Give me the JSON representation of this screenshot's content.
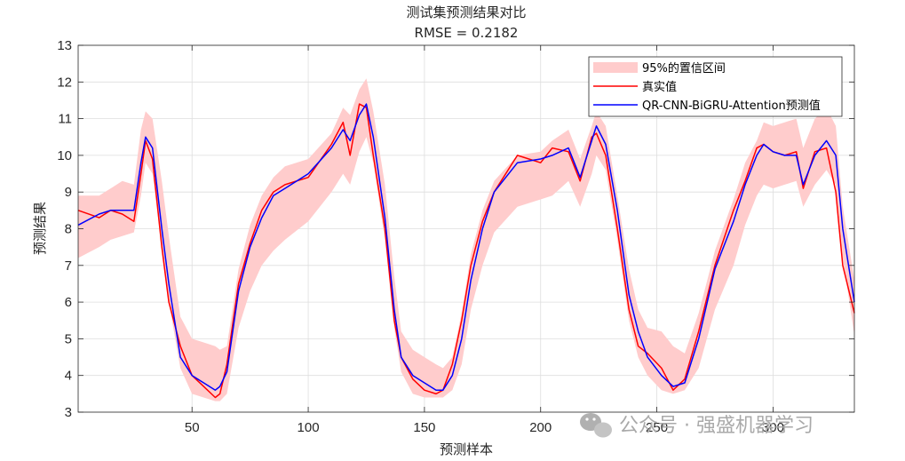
{
  "chart_data": {
    "type": "line",
    "title": "测试集预测结果对比",
    "subtitle": "RMSE = 0.2182",
    "xlabel": "预测样本",
    "ylabel": "预测结果",
    "xlim": [
      1,
      335
    ],
    "ylim": [
      3,
      13
    ],
    "xticks": [
      50,
      100,
      150,
      200,
      250,
      300
    ],
    "yticks": [
      3,
      4,
      5,
      6,
      7,
      8,
      9,
      10,
      11,
      12,
      13
    ],
    "grid": true,
    "legend_position": "top-right",
    "legend": [
      "95%的置信区间",
      "真实值",
      "QR-CNN-BiGRU-Attention预测值"
    ],
    "colors": {
      "band": "#ffcccc",
      "actual": "#ff0000",
      "predicted": "#0000ff"
    },
    "x": [
      1,
      10,
      15,
      20,
      25,
      28,
      30,
      33,
      37,
      40,
      45,
      50,
      55,
      60,
      62,
      65,
      70,
      75,
      80,
      85,
      90,
      100,
      110,
      115,
      118,
      122,
      125,
      128,
      133,
      137,
      140,
      145,
      150,
      155,
      158,
      162,
      166,
      170,
      175,
      180,
      190,
      200,
      205,
      212,
      217,
      222,
      224,
      228,
      233,
      238,
      242,
      246,
      252,
      257,
      262,
      268,
      275,
      283,
      288,
      293,
      296,
      300,
      305,
      310,
      313,
      318,
      323,
      327,
      330,
      335
    ],
    "series": [
      {
        "name": "真实值",
        "values": [
          8.5,
          8.3,
          8.5,
          8.4,
          8.2,
          9.5,
          10.4,
          9.9,
          7.5,
          6.0,
          4.8,
          4.0,
          3.7,
          3.4,
          3.5,
          4.3,
          6.5,
          7.6,
          8.5,
          9.0,
          9.2,
          9.4,
          10.3,
          10.9,
          10.0,
          11.4,
          11.3,
          10.0,
          8.0,
          5.5,
          4.5,
          3.9,
          3.6,
          3.5,
          3.6,
          4.3,
          5.5,
          7.0,
          8.2,
          9.0,
          10.0,
          9.8,
          10.2,
          10.1,
          9.3,
          10.5,
          10.6,
          10.0,
          8.0,
          5.8,
          4.8,
          4.6,
          4.2,
          3.6,
          3.9,
          5.2,
          7.0,
          8.5,
          9.3,
          10.2,
          10.3,
          10.1,
          10.0,
          10.1,
          9.1,
          10.1,
          10.2,
          9.0,
          7.0,
          5.7
        ]
      },
      {
        "name": "QR-CNN-BiGRU-Attention预测值",
        "values": [
          8.1,
          8.4,
          8.5,
          8.5,
          8.5,
          9.8,
          10.5,
          10.2,
          8.0,
          6.5,
          4.5,
          4.0,
          3.8,
          3.6,
          3.7,
          4.1,
          6.3,
          7.5,
          8.3,
          8.9,
          9.1,
          9.5,
          10.2,
          10.7,
          10.4,
          11.1,
          11.4,
          10.5,
          8.3,
          5.8,
          4.5,
          4.0,
          3.8,
          3.6,
          3.6,
          4.0,
          5.0,
          6.6,
          8.0,
          9.0,
          9.8,
          9.9,
          10.0,
          10.2,
          9.4,
          10.4,
          10.8,
          10.3,
          8.5,
          6.2,
          5.2,
          4.5,
          4.0,
          3.7,
          3.8,
          5.0,
          6.9,
          8.2,
          9.2,
          10.0,
          10.3,
          10.1,
          10.0,
          10.0,
          9.2,
          10.0,
          10.4,
          10.0,
          8.0,
          6.0
        ]
      },
      {
        "name": "95%的置信区间 (lower)",
        "values": [
          7.2,
          7.5,
          7.7,
          7.8,
          7.9,
          8.9,
          9.8,
          9.5,
          7.5,
          6.0,
          4.2,
          3.5,
          3.4,
          3.3,
          3.3,
          3.5,
          5.3,
          6.3,
          7.0,
          7.4,
          7.7,
          8.2,
          9.0,
          9.5,
          9.2,
          10.1,
          10.5,
          9.8,
          7.7,
          5.3,
          4.1,
          3.5,
          3.4,
          3.4,
          3.4,
          3.6,
          4.3,
          5.8,
          7.0,
          7.9,
          8.6,
          8.8,
          8.9,
          9.3,
          8.6,
          9.5,
          10.0,
          9.6,
          7.7,
          5.5,
          4.5,
          4.0,
          3.6,
          3.5,
          3.6,
          4.2,
          5.8,
          7.0,
          8.1,
          8.9,
          9.2,
          9.1,
          9.2,
          9.3,
          8.6,
          9.2,
          9.6,
          9.2,
          7.2,
          5.1
        ]
      },
      {
        "name": "95%的置信区间 (upper)",
        "values": [
          8.9,
          8.9,
          9.1,
          9.3,
          9.2,
          10.7,
          11.2,
          11.0,
          9.3,
          7.8,
          5.6,
          5.0,
          4.9,
          4.8,
          4.7,
          4.8,
          6.9,
          8.1,
          8.9,
          9.4,
          9.7,
          9.9,
          10.6,
          11.3,
          11.1,
          11.8,
          12.1,
          11.2,
          9.2,
          6.7,
          5.2,
          4.7,
          4.5,
          4.3,
          4.2,
          4.5,
          5.7,
          7.3,
          8.5,
          9.3,
          10.0,
          10.1,
          10.4,
          10.7,
          9.9,
          10.8,
          11.2,
          10.8,
          8.9,
          6.9,
          5.8,
          5.3,
          5.2,
          4.8,
          4.6,
          5.7,
          7.4,
          8.8,
          9.8,
          10.4,
          10.9,
          10.8,
          10.9,
          11.0,
          10.2,
          11.0,
          11.3,
          10.8,
          8.6,
          6.6
        ]
      }
    ]
  },
  "watermark": {
    "text": "公众号 · 强盛机器学习"
  }
}
